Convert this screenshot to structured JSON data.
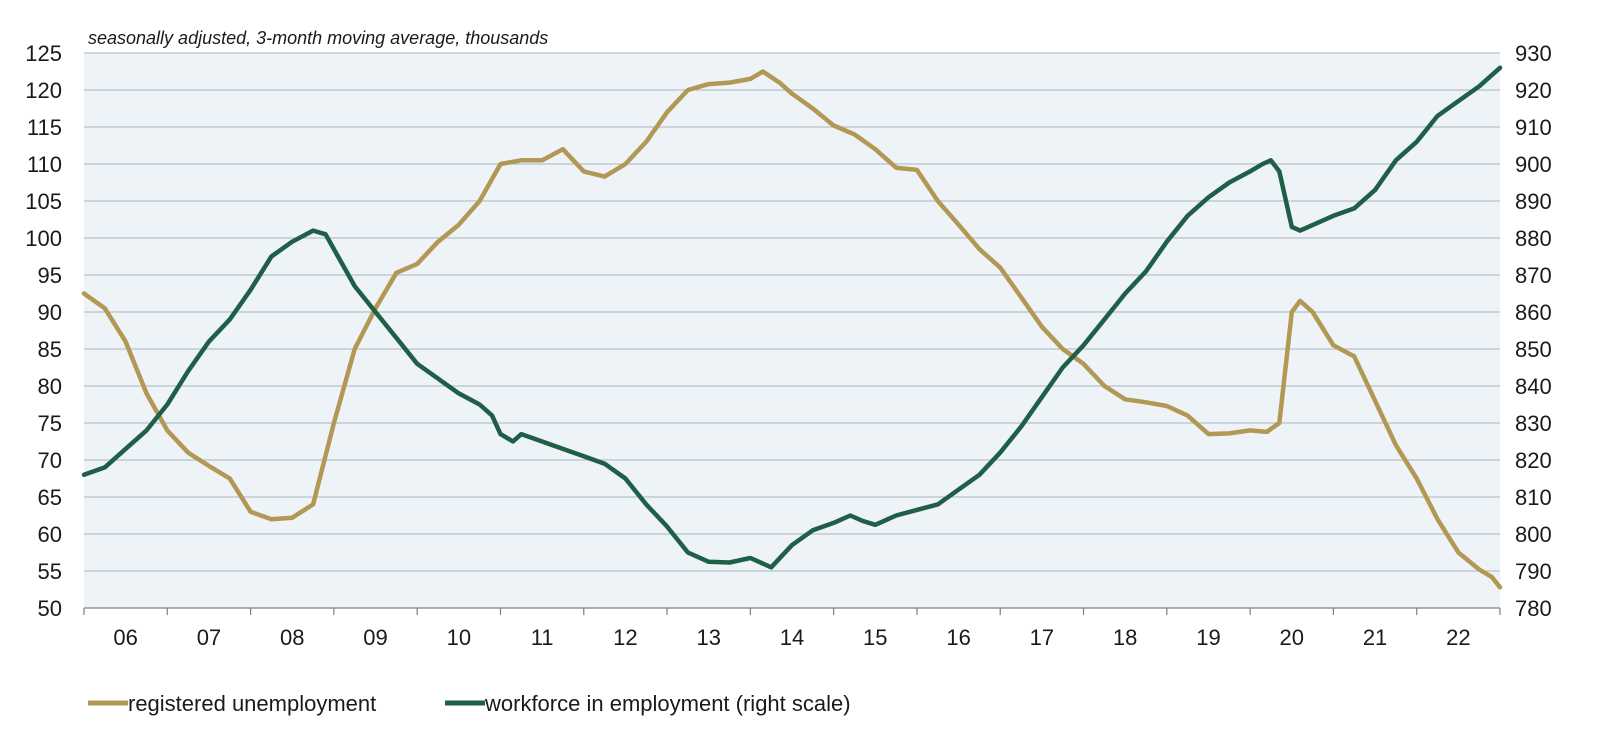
{
  "chart_data": {
    "type": "line",
    "subtitle": "seasonally adjusted, 3-month moving average, thousands",
    "x_ticks": [
      "06",
      "07",
      "08",
      "09",
      "10",
      "11",
      "12",
      "13",
      "14",
      "15",
      "16",
      "17",
      "18",
      "19",
      "20",
      "21",
      "22"
    ],
    "x_range": [
      2005.5,
      2022.5
    ],
    "y_left": {
      "min": 50,
      "max": 125,
      "step": 5,
      "ticks": [
        "50",
        "55",
        "60",
        "65",
        "70",
        "75",
        "80",
        "85",
        "90",
        "95",
        "100",
        "105",
        "110",
        "115",
        "120",
        "125"
      ]
    },
    "y_right": {
      "min": 780,
      "max": 930,
      "step": 10,
      "ticks": [
        "780",
        "790",
        "800",
        "810",
        "820",
        "830",
        "840",
        "850",
        "860",
        "870",
        "880",
        "890",
        "900",
        "910",
        "920",
        "930"
      ]
    },
    "grid": true,
    "legend_position": "bottom-left",
    "colors": {
      "unemployment": "#B39855",
      "employment": "#1F5E47",
      "plot_bg": "#EDF3F6",
      "grid": "#A9B6BE"
    },
    "series": [
      {
        "name": "registered unemployment",
        "axis": "left",
        "color": "#B39855",
        "points": [
          [
            2005.5,
            92.5
          ],
          [
            2005.75,
            90.5
          ],
          [
            2006.0,
            86
          ],
          [
            2006.25,
            79
          ],
          [
            2006.5,
            74
          ],
          [
            2006.75,
            71
          ],
          [
            2007.0,
            69.2
          ],
          [
            2007.25,
            67.5
          ],
          [
            2007.5,
            63
          ],
          [
            2007.75,
            62
          ],
          [
            2008.0,
            62.2
          ],
          [
            2008.25,
            64
          ],
          [
            2008.5,
            75
          ],
          [
            2008.75,
            85
          ],
          [
            2009.0,
            90.5
          ],
          [
            2009.25,
            95.3
          ],
          [
            2009.5,
            96.5
          ],
          [
            2009.75,
            99.5
          ],
          [
            2010.0,
            101.8
          ],
          [
            2010.25,
            105
          ],
          [
            2010.5,
            110
          ],
          [
            2010.75,
            110.5
          ],
          [
            2011.0,
            110.5
          ],
          [
            2011.25,
            112
          ],
          [
            2011.5,
            109
          ],
          [
            2011.75,
            108.3
          ],
          [
            2012.0,
            110
          ],
          [
            2012.25,
            113
          ],
          [
            2012.5,
            117
          ],
          [
            2012.75,
            120
          ],
          [
            2013.0,
            120.8
          ],
          [
            2013.25,
            121
          ],
          [
            2013.5,
            121.5
          ],
          [
            2013.65,
            122.5
          ],
          [
            2013.85,
            121
          ],
          [
            2014.0,
            119.5
          ],
          [
            2014.25,
            117.5
          ],
          [
            2014.5,
            115.2
          ],
          [
            2014.75,
            114
          ],
          [
            2015.0,
            112
          ],
          [
            2015.25,
            109.5
          ],
          [
            2015.5,
            109.2
          ],
          [
            2015.75,
            105
          ],
          [
            2016.0,
            101.8
          ],
          [
            2016.25,
            98.5
          ],
          [
            2016.5,
            96
          ],
          [
            2016.75,
            92
          ],
          [
            2017.0,
            88
          ],
          [
            2017.25,
            85
          ],
          [
            2017.5,
            83
          ],
          [
            2017.75,
            80
          ],
          [
            2018.0,
            78.2
          ],
          [
            2018.25,
            77.8
          ],
          [
            2018.5,
            77.3
          ],
          [
            2018.75,
            76
          ],
          [
            2019.0,
            73.5
          ],
          [
            2019.25,
            73.6
          ],
          [
            2019.5,
            74
          ],
          [
            2019.7,
            73.8
          ],
          [
            2019.85,
            75
          ],
          [
            2020.0,
            90
          ],
          [
            2020.1,
            91.5
          ],
          [
            2020.25,
            90
          ],
          [
            2020.5,
            85.5
          ],
          [
            2020.75,
            84
          ],
          [
            2021.0,
            78
          ],
          [
            2021.25,
            72
          ],
          [
            2021.5,
            67.5
          ],
          [
            2021.75,
            62
          ],
          [
            2022.0,
            57.5
          ],
          [
            2022.25,
            55.2
          ],
          [
            2022.4,
            54.2
          ],
          [
            2022.5,
            52.8
          ]
        ]
      },
      {
        "name": "workforce in employment (right scale)",
        "axis": "right",
        "color": "#1F5E47",
        "points": [
          [
            2005.5,
            816
          ],
          [
            2005.75,
            818
          ],
          [
            2006.0,
            823
          ],
          [
            2006.25,
            828
          ],
          [
            2006.5,
            835
          ],
          [
            2006.75,
            844
          ],
          [
            2007.0,
            852
          ],
          [
            2007.25,
            858
          ],
          [
            2007.5,
            866
          ],
          [
            2007.75,
            875
          ],
          [
            2008.0,
            879
          ],
          [
            2008.25,
            882
          ],
          [
            2008.4,
            881
          ],
          [
            2008.6,
            873
          ],
          [
            2008.75,
            867
          ],
          [
            2009.0,
            860
          ],
          [
            2009.25,
            853
          ],
          [
            2009.5,
            846
          ],
          [
            2009.75,
            842
          ],
          [
            2010.0,
            838
          ],
          [
            2010.25,
            835
          ],
          [
            2010.4,
            832
          ],
          [
            2010.5,
            827
          ],
          [
            2010.65,
            825
          ],
          [
            2010.75,
            827
          ],
          [
            2011.0,
            825
          ],
          [
            2011.25,
            823
          ],
          [
            2011.5,
            821
          ],
          [
            2011.75,
            819
          ],
          [
            2012.0,
            815
          ],
          [
            2012.25,
            808
          ],
          [
            2012.5,
            802
          ],
          [
            2012.75,
            795
          ],
          [
            2013.0,
            792.5
          ],
          [
            2013.25,
            792.3
          ],
          [
            2013.5,
            793.5
          ],
          [
            2013.75,
            791
          ],
          [
            2014.0,
            797
          ],
          [
            2014.25,
            801
          ],
          [
            2014.5,
            803
          ],
          [
            2014.7,
            805
          ],
          [
            2014.85,
            803.5
          ],
          [
            2015.0,
            802.5
          ],
          [
            2015.25,
            805
          ],
          [
            2015.5,
            806.5
          ],
          [
            2015.75,
            808
          ],
          [
            2016.0,
            812
          ],
          [
            2016.25,
            816
          ],
          [
            2016.5,
            822
          ],
          [
            2016.75,
            829
          ],
          [
            2017.0,
            837
          ],
          [
            2017.25,
            845
          ],
          [
            2017.5,
            851
          ],
          [
            2017.75,
            858
          ],
          [
            2018.0,
            865
          ],
          [
            2018.25,
            871
          ],
          [
            2018.5,
            879
          ],
          [
            2018.75,
            886
          ],
          [
            2019.0,
            891
          ],
          [
            2019.25,
            895
          ],
          [
            2019.5,
            898
          ],
          [
            2019.65,
            900
          ],
          [
            2019.75,
            901
          ],
          [
            2019.85,
            898
          ],
          [
            2020.0,
            883
          ],
          [
            2020.1,
            882
          ],
          [
            2020.25,
            883.5
          ],
          [
            2020.5,
            886
          ],
          [
            2020.75,
            888
          ],
          [
            2021.0,
            893
          ],
          [
            2021.25,
            901
          ],
          [
            2021.5,
            906
          ],
          [
            2021.75,
            913
          ],
          [
            2022.0,
            917
          ],
          [
            2022.25,
            921
          ],
          [
            2022.5,
            926
          ]
        ]
      }
    ]
  }
}
